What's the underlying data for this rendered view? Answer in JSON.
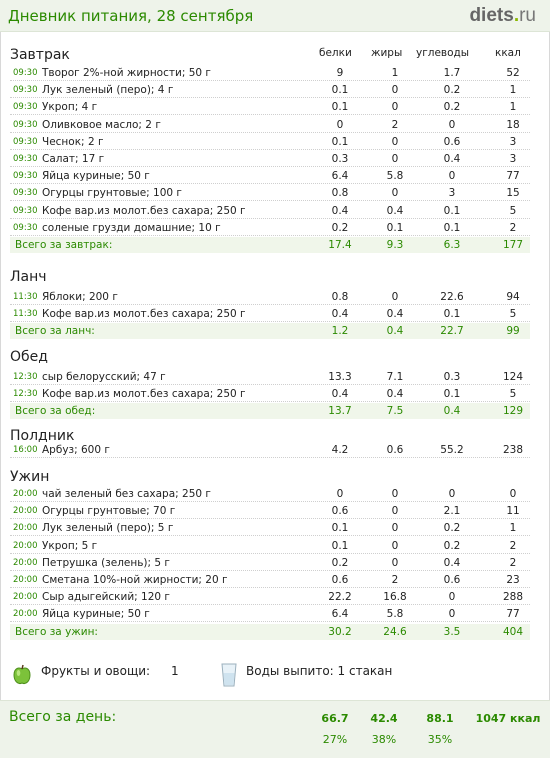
{
  "header": {
    "title": "Дневник питания, 28 сентября",
    "logo": {
      "name": "diets",
      "dot": ".",
      "tld": "ru"
    }
  },
  "columns": {
    "protein": "белки",
    "fat": "жиры",
    "carbs": "углеводы",
    "kcal": "ккал"
  },
  "meals": [
    {
      "name": "Завтрак",
      "items": [
        {
          "time": "09:30",
          "name": "Творог 2%-ной жирности; 50 г",
          "p": "9",
          "f": "1",
          "c": "1.7",
          "k": "52"
        },
        {
          "time": "09:30",
          "name": "Лук зеленый (перо); 4 г",
          "p": "0.1",
          "f": "0",
          "c": "0.2",
          "k": "1"
        },
        {
          "time": "09:30",
          "name": "Укроп; 4 г",
          "p": "0.1",
          "f": "0",
          "c": "0.2",
          "k": "1"
        },
        {
          "time": "09:30",
          "name": "Оливковое масло; 2 г",
          "p": "0",
          "f": "2",
          "c": "0",
          "k": "18"
        },
        {
          "time": "09:30",
          "name": "Чеснок; 2 г",
          "p": "0.1",
          "f": "0",
          "c": "0.6",
          "k": "3"
        },
        {
          "time": "09:30",
          "name": "Салат; 17 г",
          "p": "0.3",
          "f": "0",
          "c": "0.4",
          "k": "3"
        },
        {
          "time": "09:30",
          "name": "Яйца куриные; 50 г",
          "p": "6.4",
          "f": "5.8",
          "c": "0",
          "k": "77"
        },
        {
          "time": "09:30",
          "name": "Огурцы грунтовые; 100 г",
          "p": "0.8",
          "f": "0",
          "c": "3",
          "k": "15"
        },
        {
          "time": "09:30",
          "name": "Кофе вар.из молот.без сахара; 250 г",
          "p": "0.4",
          "f": "0.4",
          "c": "0.1",
          "k": "5"
        },
        {
          "time": "09:30",
          "name": "соленые грузди домашние; 10 г",
          "p": "0.2",
          "f": "0.1",
          "c": "0.1",
          "k": "2"
        }
      ],
      "total": {
        "label": "Всего за завтрак:",
        "p": "17.4",
        "f": "9.3",
        "c": "6.3",
        "k": "177"
      }
    },
    {
      "name": "Ланч",
      "items": [
        {
          "time": "11:30",
          "name": "Яблоки; 200 г",
          "p": "0.8",
          "f": "0",
          "c": "22.6",
          "k": "94"
        },
        {
          "time": "11:30",
          "name": "Кофе вар.из молот.без сахара; 250 г",
          "p": "0.4",
          "f": "0.4",
          "c": "0.1",
          "k": "5"
        }
      ],
      "total": {
        "label": "Всего за ланч:",
        "p": "1.2",
        "f": "0.4",
        "c": "22.7",
        "k": "99"
      }
    },
    {
      "name": "Обед",
      "items": [
        {
          "time": "12:30",
          "name": "сыр белорусский; 47 г",
          "p": "13.3",
          "f": "7.1",
          "c": "0.3",
          "k": "124"
        },
        {
          "time": "12:30",
          "name": "Кофе вар.из молот.без сахара; 250 г",
          "p": "0.4",
          "f": "0.4",
          "c": "0.1",
          "k": "5"
        }
      ],
      "total": {
        "label": "Всего за обед:",
        "p": "13.7",
        "f": "7.5",
        "c": "0.4",
        "k": "129"
      }
    },
    {
      "name": "Полдник",
      "items": [
        {
          "time": "16:00",
          "name": "Арбуз; 600 г",
          "p": "4.2",
          "f": "0.6",
          "c": "55.2",
          "k": "238"
        }
      ],
      "total": null
    },
    {
      "name": "Ужин",
      "items": [
        {
          "time": "20:00",
          "name": "чай зеленый без сахара; 250 г",
          "p": "0",
          "f": "0",
          "c": "0",
          "k": "0"
        },
        {
          "time": "20:00",
          "name": "Огурцы грунтовые; 70 г",
          "p": "0.6",
          "f": "0",
          "c": "2.1",
          "k": "11"
        },
        {
          "time": "20:00",
          "name": "Лук зеленый (перо); 5 г",
          "p": "0.1",
          "f": "0",
          "c": "0.2",
          "k": "1"
        },
        {
          "time": "20:00",
          "name": "Укроп; 5 г",
          "p": "0.1",
          "f": "0",
          "c": "0.2",
          "k": "2"
        },
        {
          "time": "20:00",
          "name": "Петрушка (зелень); 5 г",
          "p": "0.2",
          "f": "0",
          "c": "0.4",
          "k": "2"
        },
        {
          "time": "20:00",
          "name": "Сметана 10%-ной жирности; 20 г",
          "p": "0.6",
          "f": "2",
          "c": "0.6",
          "k": "23"
        },
        {
          "time": "20:00",
          "name": "Сыр адыгейский; 120 г",
          "p": "22.2",
          "f": "16.8",
          "c": "0",
          "k": "288"
        },
        {
          "time": "20:00",
          "name": "Яйца куриные; 50 г",
          "p": "6.4",
          "f": "5.8",
          "c": "0",
          "k": "77"
        }
      ],
      "total": {
        "label": "Всего за ужин:",
        "p": "30.2",
        "f": "24.6",
        "c": "3.5",
        "k": "404"
      }
    }
  ],
  "extras": {
    "fruits_label": "Фрукты и овощи:",
    "fruits_value": "1",
    "water_label": "Воды выпито: 1 стакан",
    "fruits_icon": "green-apple-icon",
    "water_icon": "water-glass-icon"
  },
  "day_total": {
    "label": "Всего за день:",
    "p": "66.7",
    "f": "42.4",
    "c": "88.1",
    "k": "1047 ккал",
    "p_pct": "27%",
    "f_pct": "38%",
    "c_pct": "35%"
  },
  "colors": {
    "accent": "#2b8a00",
    "total_bg": "#f0f6ea",
    "header_bg": "#eef3ea"
  }
}
